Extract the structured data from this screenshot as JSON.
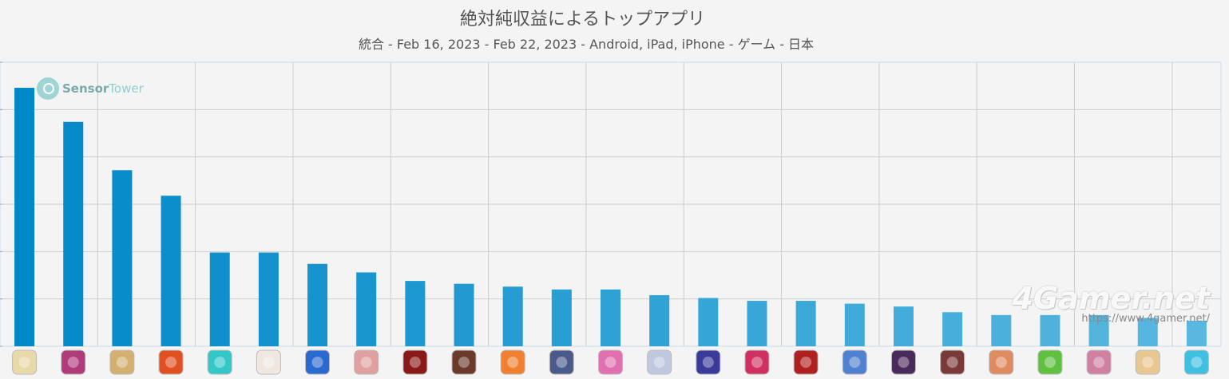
{
  "chart_data": {
    "type": "bar",
    "title": "絶対純収益によるトップアプリ",
    "subtitle": "統合 - Feb 16, 2023 - Feb 22, 2023 - Android, iPad, iPhone - ゲーム - 日本",
    "xlabel": "",
    "ylabel": "",
    "ylim": [
      0,
      100
    ],
    "grid": true,
    "legend": "none",
    "value_unit": "relative bar height (no numeric axis labels shown)",
    "values": [
      91,
      79,
      62,
      53,
      33,
      33,
      29,
      26,
      23,
      22,
      21,
      20,
      20,
      18,
      17,
      16,
      16,
      15,
      14,
      12,
      11,
      11,
      11,
      10,
      9
    ],
    "categories_icons": [
      "app-icon-1",
      "app-icon-2",
      "app-icon-3",
      "app-icon-4",
      "app-icon-5",
      "app-icon-6",
      "app-icon-7",
      "app-icon-8",
      "app-icon-9",
      "app-icon-10",
      "app-icon-11",
      "app-icon-12",
      "app-icon-13",
      "app-icon-14",
      "app-icon-15",
      "app-icon-16",
      "app-icon-17",
      "app-icon-18",
      "app-icon-19",
      "app-icon-20",
      "app-icon-21",
      "app-icon-22",
      "app-icon-23",
      "app-icon-24",
      "app-icon-25"
    ],
    "icon_colors": [
      "#e8d9a8",
      "#b03a7a",
      "#d4b070",
      "#e05020",
      "#33c8c8",
      "#f0e8e0",
      "#2a6ad0",
      "#e0a0a0",
      "#8a1a1a",
      "#6a3a2a",
      "#f08030",
      "#4a5a8a",
      "#e070b0",
      "#c0c8e0",
      "#3a3a9a",
      "#d03060",
      "#b02020",
      "#5080d0",
      "#4a2a5a",
      "#7a3a3a",
      "#e08a60",
      "#60c040",
      "#d080a0",
      "#e8c890",
      "#40c0e0"
    ],
    "bar_color_start": "#0088c8",
    "bar_color_end": "#5ab8e0"
  },
  "brand": {
    "name_bold": "Sensor",
    "name_light": "Tower"
  },
  "watermark": {
    "name": "4Gamer.net",
    "url": "https://www.4gamer.net/"
  }
}
